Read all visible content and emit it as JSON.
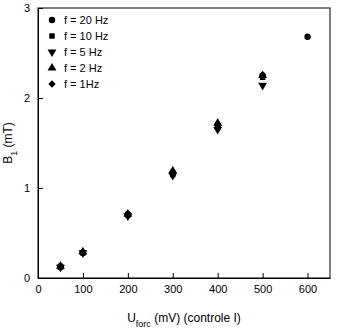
{
  "chart_data": {
    "type": "scatter",
    "x_label": "Uforc (mV) (controle I)",
    "y_label": "B1 (mT)",
    "x": [
      50,
      100,
      200,
      300,
      400,
      500,
      600
    ],
    "series": [
      {
        "name": "f = 20 Hz",
        "color": "#000000",
        "marker": "circle",
        "values": [
          0.13,
          0.28,
          0.71,
          1.17,
          1.7,
          2.25,
          2.68
        ]
      },
      {
        "name": "f = 10 Hz",
        "color": "#000000",
        "marker": "square",
        "values": [
          0.12,
          0.28,
          0.7,
          1.15,
          1.68,
          2.23,
          null
        ]
      },
      {
        "name": "f = 5 Hz",
        "color": "#000000",
        "marker": "triangle-down",
        "values": [
          0.12,
          0.28,
          0.69,
          1.14,
          1.65,
          2.14,
          null
        ]
      },
      {
        "name": "f = 2 Hz",
        "color": "#000000",
        "marker": "triangle-up",
        "values": [
          0.13,
          0.29,
          0.71,
          1.19,
          1.72,
          2.25,
          null
        ]
      },
      {
        "name": "f = 1Hz",
        "color": "#000000",
        "marker": "diamond",
        "values": [
          0.12,
          0.28,
          0.7,
          1.16,
          1.67,
          2.24,
          null
        ]
      }
    ],
    "xlim": [
      0,
      650
    ],
    "xticks": [
      0,
      100,
      200,
      300,
      400,
      500,
      600
    ],
    "ylim": [
      0,
      3
    ],
    "yticks": [
      0,
      1,
      2,
      3
    ],
    "legend": "upper-left",
    "grid": false
  }
}
